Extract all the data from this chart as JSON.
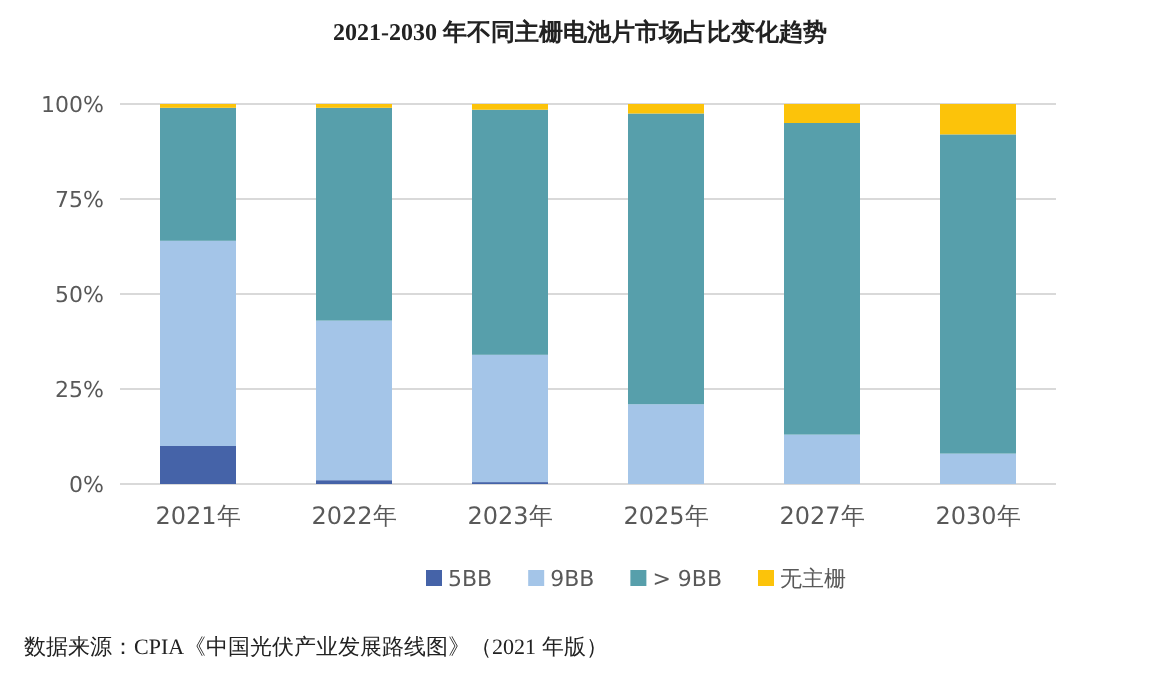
{
  "chart_data": {
    "type": "bar",
    "title": "2021-2030 年不同主栅电池片市场占比变化趋势",
    "categories": [
      "2021年",
      "2022年",
      "2023年",
      "2025年",
      "2027年",
      "2030年"
    ],
    "stacked": true,
    "series": [
      {
        "name": "5BB",
        "color": "#4563a8",
        "values": [
          10,
          1,
          0.5,
          0,
          0,
          0
        ]
      },
      {
        "name": "9BB",
        "color": "#a4c5e8",
        "values": [
          54,
          42,
          33.5,
          21,
          13,
          8
        ]
      },
      {
        "name": "> 9BB",
        "color": "#579fab",
        "values": [
          35,
          56,
          64.5,
          76.5,
          82,
          84
        ]
      },
      {
        "name": "无主栅",
        "color": "#fcc30a",
        "values": [
          1,
          1,
          1.5,
          2.5,
          5,
          8
        ]
      }
    ],
    "ylim": [
      0,
      100
    ],
    "yticks": [
      {
        "value": 0,
        "label": "0%"
      },
      {
        "value": 25,
        "label": "25%"
      },
      {
        "value": 50,
        "label": "50%"
      },
      {
        "value": 75,
        "label": "75%"
      },
      {
        "value": 100,
        "label": "100%"
      }
    ],
    "grid": "y",
    "legend": "bottom",
    "annotations": [
      "数据来源：CPIA《中国光伏产业发展路线图》（2021 年版）"
    ]
  }
}
